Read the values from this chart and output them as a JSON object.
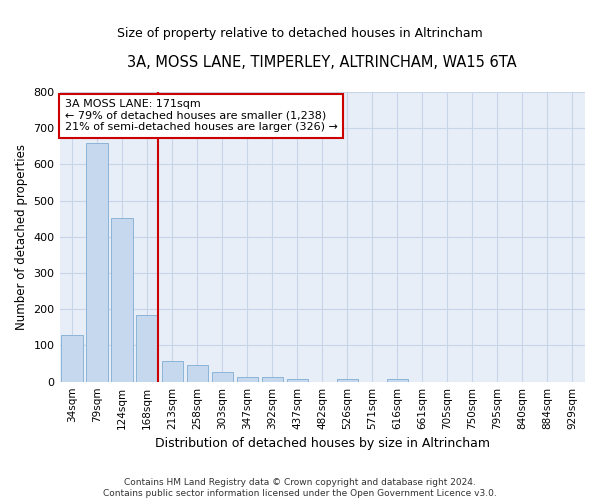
{
  "title": "3A, MOSS LANE, TIMPERLEY, ALTRINCHAM, WA15 6TA",
  "subtitle": "Size of property relative to detached houses in Altrincham",
  "xlabel": "Distribution of detached houses by size in Altrincham",
  "ylabel": "Number of detached properties",
  "categories": [
    "34sqm",
    "79sqm",
    "124sqm",
    "168sqm",
    "213sqm",
    "258sqm",
    "303sqm",
    "347sqm",
    "392sqm",
    "437sqm",
    "482sqm",
    "526sqm",
    "571sqm",
    "616sqm",
    "661sqm",
    "705sqm",
    "750sqm",
    "795sqm",
    "840sqm",
    "884sqm",
    "929sqm"
  ],
  "values": [
    130,
    660,
    452,
    183,
    58,
    46,
    26,
    12,
    13,
    8,
    0,
    8,
    0,
    8,
    0,
    0,
    0,
    0,
    0,
    0,
    0
  ],
  "bar_color": "#c5d8ee",
  "bar_edge_color": "#8ab4d8",
  "vline_color": "#cc0000",
  "annotation_box_color": "#ffffff",
  "annotation_box_edge": "#cc0000",
  "annotation_line1": "3A MOSS LANE: 171sqm",
  "annotation_line2": "← 79% of detached houses are smaller (1,238)",
  "annotation_line3": "21% of semi-detached houses are larger (326) →",
  "grid_color": "#c8d4e8",
  "bg_color": "#e8eef8",
  "footnote": "Contains HM Land Registry data © Crown copyright and database right 2024.\nContains public sector information licensed under the Open Government Licence v3.0.",
  "ylim": [
    0,
    800
  ],
  "yticks": [
    0,
    100,
    200,
    300,
    400,
    500,
    600,
    700,
    800
  ],
  "vline_x": 3.42
}
